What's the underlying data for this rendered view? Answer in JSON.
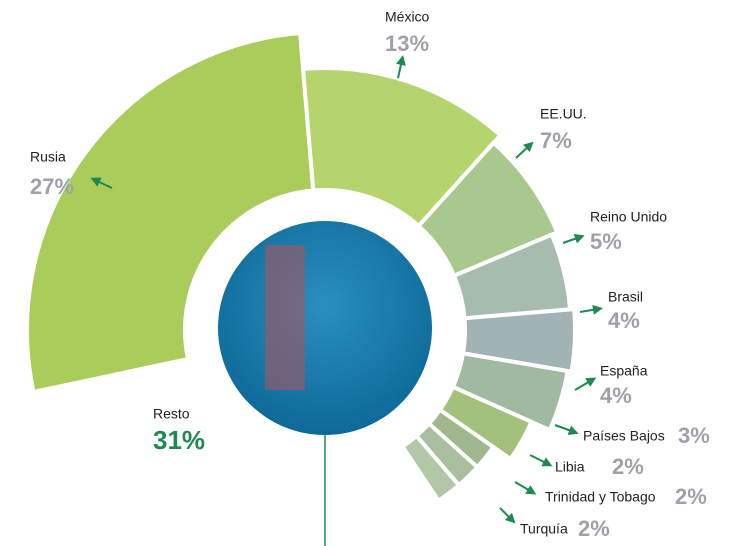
{
  "chart_data": {
    "type": "pie",
    "categories": [
      "Rusia",
      "México",
      "EE.UU.",
      "Reino Unido",
      "Brasil",
      "España",
      "Países Bajos",
      "Libia",
      "Trinidad y Tobago",
      "Turquía",
      "Resto"
    ],
    "values": [
      27,
      13,
      7,
      5,
      4,
      4,
      3,
      2,
      2,
      2,
      31
    ],
    "value_labels": [
      "27%",
      "13%",
      "7%",
      "5%",
      "4%",
      "4%",
      "3%",
      "2%",
      "2%",
      "2%",
      "31%"
    ],
    "colors": [
      "#a9cc5a",
      "#b6d46e",
      "#a9c88e",
      "#a7bcae",
      "#a1b3b5",
      "#9fbaa0",
      "#a3c07c",
      "#a0b88e",
      "#a9bf9e",
      "#b1c7a6",
      "#ffffff"
    ]
  }
}
